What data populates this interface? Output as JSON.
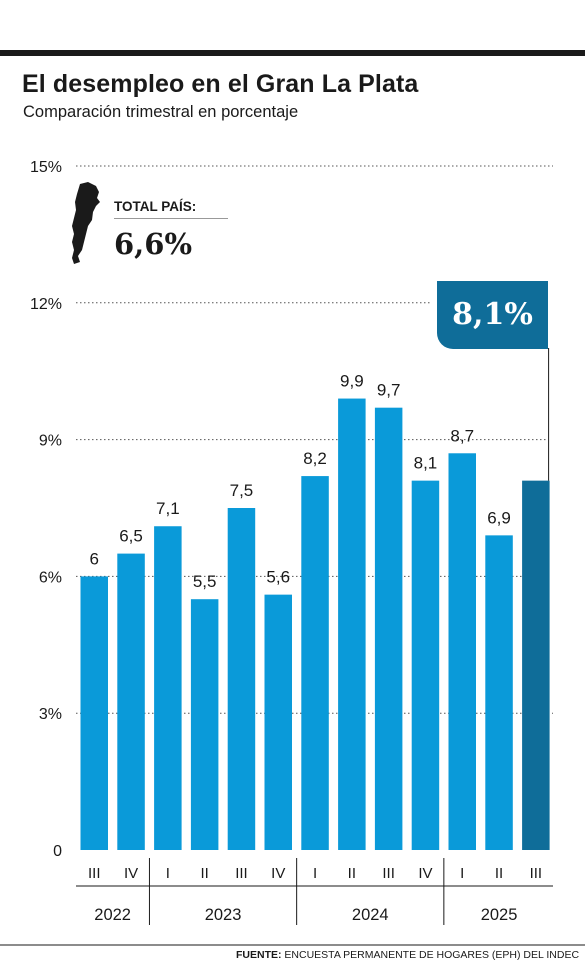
{
  "header": {
    "title": "El desempleo en el Gran La Plata",
    "subtitle": "Comparación trimestral en porcentaje"
  },
  "country_total": {
    "label": "TOTAL PAÍS:",
    "value": "6,6%",
    "map_icon": "argentina-map-icon"
  },
  "highlight": {
    "value": "8,1%"
  },
  "source": {
    "label": "FUENTE:",
    "text": "ENCUESTA PERMANENTE DE HOGARES (EPH) DEL INDEC"
  },
  "colors": {
    "bar": "#0a9ad9",
    "bar_highlight": "#0f6d99",
    "text": "#1a1a1a",
    "grid": "#555555"
  },
  "chart_data": {
    "type": "bar",
    "categories": [
      "III",
      "IV",
      "I",
      "II",
      "III",
      "IV",
      "I",
      "II",
      "III",
      "IV",
      "I",
      "II",
      "III"
    ],
    "years": [
      {
        "label": "2022",
        "span": 2
      },
      {
        "label": "2023",
        "span": 4
      },
      {
        "label": "2024",
        "span": 4
      },
      {
        "label": "2025",
        "span": 3
      }
    ],
    "values": [
      6,
      6.5,
      7.1,
      5.5,
      7.5,
      5.6,
      8.2,
      9.9,
      9.7,
      8.1,
      8.7,
      6.9,
      8.1
    ],
    "value_labels": [
      "6",
      "6,5",
      "7,1",
      "5,5",
      "7,5",
      "5,6",
      "8,2",
      "9,9",
      "9,7",
      "8,1",
      "8,7",
      "6,9",
      ""
    ],
    "highlight_index": 12,
    "y_ticks": [
      {
        "value": 0,
        "label": "0"
      },
      {
        "value": 3,
        "label": "3%"
      },
      {
        "value": 6,
        "label": "6%"
      },
      {
        "value": 9,
        "label": "9%"
      },
      {
        "value": 12,
        "label": "12%"
      },
      {
        "value": 15,
        "label": "15%"
      }
    ],
    "ylim": [
      0,
      15
    ],
    "grid": true,
    "title": "El desempleo en el Gran La Plata",
    "subtitle": "Comparación trimestral en porcentaje",
    "xlabel": "",
    "ylabel": ""
  }
}
